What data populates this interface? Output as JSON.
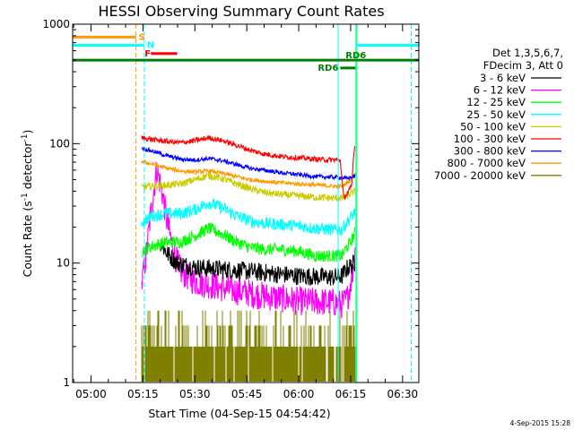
{
  "chart_data": {
    "type": "line",
    "title": "HESSI Observing Summary Count Rates",
    "xlabel": "Start Time (04-Sep-15 04:54:42)",
    "ylabel_main": "Count Rate (s",
    "ylabel_sup1": "-1",
    "ylabel_mid": " detector",
    "ylabel_sup2": "-1",
    "ylabel_end": ")",
    "y_scale": "log",
    "ylim": [
      1,
      1000
    ],
    "xlim": [
      294.7,
      394.7
    ],
    "x_ticks": [
      {
        "t": 300,
        "label": "05:00"
      },
      {
        "t": 315,
        "label": "05:15"
      },
      {
        "t": 330,
        "label": "05:30"
      },
      {
        "t": 345,
        "label": "05:45"
      },
      {
        "t": 360,
        "label": "06:00"
      },
      {
        "t": 375,
        "label": "06:15"
      },
      {
        "t": 390,
        "label": "06:30"
      }
    ],
    "y_ticks": [
      {
        "v": 1,
        "label": "1"
      },
      {
        "v": 10,
        "label": "10"
      },
      {
        "v": 100,
        "label": "100"
      },
      {
        "v": 1000,
        "label": "1000"
      }
    ],
    "legend_header": [
      "Det 1,3,5,6,7,",
      "FDecim 3, Att 0"
    ],
    "legend_placement": "right",
    "data_start": 314.5,
    "data_end": 376.5,
    "series": [
      {
        "name": "3 - 6 keV",
        "color": "#000000",
        "noise": 0.18,
        "tmin": 320,
        "tmax": 376.5,
        "points": [
          [
            320,
            15
          ],
          [
            322,
            12
          ],
          [
            325,
            10
          ],
          [
            330,
            9.2
          ],
          [
            340,
            8.8
          ],
          [
            350,
            8.3
          ],
          [
            360,
            7.8
          ],
          [
            370,
            7.6
          ],
          [
            372.5,
            7.8
          ],
          [
            374,
            9
          ],
          [
            376,
            10
          ]
        ]
      },
      {
        "name": "6 - 12 keV",
        "color": "#ff00ff",
        "noise": 0.28,
        "tmin": 314.5,
        "tmax": 376.5,
        "points": [
          [
            314.5,
            6
          ],
          [
            316,
            12
          ],
          [
            317.5,
            30
          ],
          [
            319,
            62
          ],
          [
            320.5,
            40
          ],
          [
            322,
            22
          ],
          [
            324,
            12
          ],
          [
            326,
            8.5
          ],
          [
            330,
            7
          ],
          [
            340,
            6
          ],
          [
            350,
            5.3
          ],
          [
            360,
            4.8
          ],
          [
            370,
            4.7
          ],
          [
            372.5,
            4.5
          ],
          [
            374,
            5
          ],
          [
            375.5,
            8
          ],
          [
            376.3,
            12
          ]
        ]
      },
      {
        "name": "12 - 25 keV",
        "color": "#00ff00",
        "noise": 0.12,
        "tmin": 314.5,
        "tmax": 376.5,
        "points": [
          [
            314.5,
            12.5
          ],
          [
            318,
            14
          ],
          [
            322,
            15
          ],
          [
            326,
            15
          ],
          [
            330,
            17
          ],
          [
            334,
            19.5
          ],
          [
            338,
            17.5
          ],
          [
            342,
            15
          ],
          [
            346,
            13.5
          ],
          [
            350,
            13
          ],
          [
            355,
            13
          ],
          [
            360,
            12.5
          ],
          [
            365,
            11.5
          ],
          [
            370,
            11.5
          ],
          [
            372.5,
            11.5
          ],
          [
            373.5,
            13
          ],
          [
            375,
            15
          ],
          [
            376.3,
            18
          ]
        ]
      },
      {
        "name": "25 - 50 keV",
        "color": "#00ffff",
        "noise": 0.12,
        "tmin": 314.5,
        "tmax": 376.5,
        "points": [
          [
            314.5,
            22
          ],
          [
            318,
            25
          ],
          [
            322,
            26
          ],
          [
            326,
            26
          ],
          [
            330,
            28
          ],
          [
            334,
            32
          ],
          [
            338,
            29
          ],
          [
            342,
            25
          ],
          [
            346,
            22.5
          ],
          [
            350,
            21.5
          ],
          [
            355,
            21
          ],
          [
            360,
            20.5
          ],
          [
            365,
            19.5
          ],
          [
            370,
            19
          ],
          [
            372.5,
            19
          ],
          [
            373.5,
            21
          ],
          [
            375,
            24
          ],
          [
            376.3,
            27
          ]
        ]
      },
      {
        "name": "50 - 100 keV",
        "color": "#cccc00",
        "noise": 0.07,
        "tmin": 314.5,
        "tmax": 376.5,
        "points": [
          [
            314.5,
            43
          ],
          [
            318,
            44
          ],
          [
            322,
            45
          ],
          [
            326,
            46
          ],
          [
            330,
            50
          ],
          [
            334,
            54
          ],
          [
            338,
            51
          ],
          [
            342,
            46
          ],
          [
            346,
            42
          ],
          [
            350,
            39
          ],
          [
            355,
            37.5
          ],
          [
            360,
            36.5
          ],
          [
            365,
            35.5
          ],
          [
            370,
            35
          ],
          [
            372.5,
            35
          ],
          [
            373.5,
            36
          ],
          [
            375,
            38
          ],
          [
            376.3,
            40
          ]
        ]
      },
      {
        "name": "100 - 300 keV",
        "color": "#ff0000",
        "noise": 0.05,
        "tmin": 314.5,
        "tmax": 376.5,
        "points": [
          [
            314.5,
            112
          ],
          [
            318,
            108
          ],
          [
            322,
            104
          ],
          [
            326,
            102
          ],
          [
            330,
            106
          ],
          [
            334,
            112
          ],
          [
            338,
            106
          ],
          [
            342,
            97
          ],
          [
            346,
            88
          ],
          [
            350,
            82
          ],
          [
            355,
            78
          ],
          [
            360,
            76
          ],
          [
            365,
            74
          ],
          [
            370,
            73
          ],
          [
            372,
            73
          ],
          [
            373,
            35
          ],
          [
            374,
            38
          ],
          [
            375.3,
            44
          ],
          [
            376,
            90
          ],
          [
            376.4,
            98
          ]
        ]
      },
      {
        "name": "300 - 800 keV",
        "color": "#0000ff",
        "noise": 0.04,
        "tmin": 314.5,
        "tmax": 376.5,
        "points": [
          [
            314.5,
            92
          ],
          [
            318,
            86
          ],
          [
            322,
            79
          ],
          [
            326,
            74
          ],
          [
            330,
            73
          ],
          [
            334,
            75
          ],
          [
            338,
            72
          ],
          [
            342,
            67
          ],
          [
            346,
            62
          ],
          [
            350,
            60
          ],
          [
            355,
            57
          ],
          [
            360,
            55
          ],
          [
            365,
            53
          ],
          [
            370,
            52.5
          ],
          [
            372.5,
            52
          ],
          [
            373.5,
            51
          ],
          [
            375,
            52
          ],
          [
            376.3,
            54
          ]
        ]
      },
      {
        "name": "800 - 7000 keV",
        "color": "#ff9900",
        "noise": 0.04,
        "tmin": 314.5,
        "tmax": 376.5,
        "points": [
          [
            314.5,
            71
          ],
          [
            318,
            67
          ],
          [
            322,
            62
          ],
          [
            326,
            59
          ],
          [
            330,
            58
          ],
          [
            334,
            59
          ],
          [
            338,
            56.5
          ],
          [
            342,
            53
          ],
          [
            346,
            50
          ],
          [
            350,
            48.5
          ],
          [
            355,
            47
          ],
          [
            360,
            46
          ],
          [
            365,
            45
          ],
          [
            370,
            44
          ],
          [
            372.5,
            44
          ],
          [
            373.5,
            46
          ],
          [
            375,
            50
          ],
          [
            376.3,
            56
          ]
        ]
      },
      {
        "name": "7000 - 20000 keV",
        "color": "#808000",
        "noise": 0,
        "tmin": 314.5,
        "tmax": 376.5,
        "points": [
          [
            314.5,
            1.3
          ],
          [
            376.5,
            1.3
          ]
        ]
      }
    ],
    "annotations": {
      "markers": [
        {
          "label": "S",
          "color": "#ff9900",
          "t0": 294.7,
          "t1": 313.0,
          "v": 780
        },
        {
          "label": "N",
          "color": "#00ffff",
          "t0": 294.7,
          "t1": 315.4,
          "v": 665
        },
        {
          "label": "F",
          "color": "#ff0000",
          "t0": 317.3,
          "t1": 324.9,
          "v": 568
        },
        {
          "label": "RD6",
          "color": "#008000",
          "t0": 372.0,
          "t1": 376.4,
          "v": 430
        },
        {
          "label": "RD6",
          "color": "#008000",
          "t0": 294.7,
          "t1": 394.7,
          "v": 500
        },
        {
          "label": "",
          "color": "#00ffff",
          "t0": 376.5,
          "t1": 394.7,
          "v": 665
        }
      ],
      "vlines": [
        {
          "t": 294.7,
          "color": "#00ffff",
          "style": "solid"
        },
        {
          "t": 313.0,
          "color": "#ff9900",
          "style": "dashed"
        },
        {
          "t": 315.4,
          "color": "#00ffff",
          "style": "dashed"
        },
        {
          "t": 371.4,
          "color": "#00ffff",
          "style": "solid"
        },
        {
          "t": 376.5,
          "color": "#00ffff",
          "style": "solid"
        },
        {
          "t": 376.8,
          "color": "#00ff00",
          "style": "solid"
        },
        {
          "t": 392.5,
          "color": "#00ffff",
          "style": "dashed"
        }
      ]
    },
    "stamp": "4-Sep-2015 15:28"
  }
}
